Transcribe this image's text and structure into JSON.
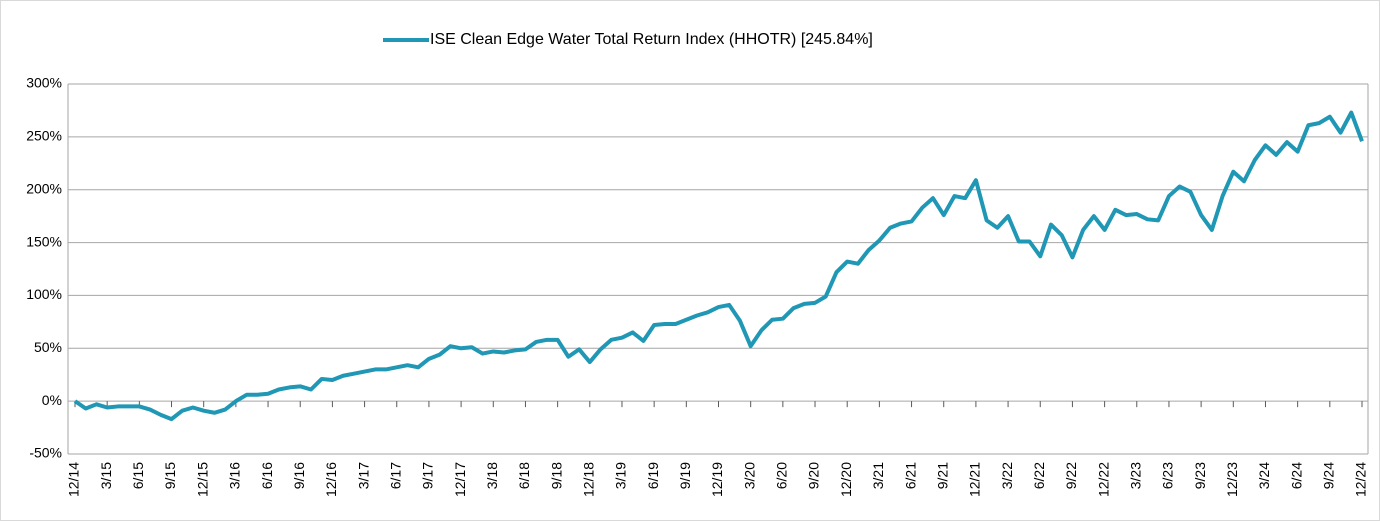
{
  "chart_data": {
    "type": "line",
    "categories": [
      "12/14",
      null,
      null,
      "3/15",
      null,
      null,
      "6/15",
      null,
      null,
      "9/15",
      null,
      null,
      "12/15",
      null,
      null,
      "3/16",
      null,
      null,
      "6/16",
      null,
      null,
      "9/16",
      null,
      null,
      "12/16",
      null,
      null,
      "3/17",
      null,
      null,
      "6/17",
      null,
      null,
      "9/17",
      null,
      null,
      "12/17",
      null,
      null,
      "3/18",
      null,
      null,
      "6/18",
      null,
      null,
      "9/18",
      null,
      null,
      "12/18",
      null,
      null,
      "3/19",
      null,
      null,
      "6/19",
      null,
      null,
      "9/19",
      null,
      null,
      "12/19",
      null,
      null,
      "3/20",
      null,
      null,
      "6/20",
      null,
      null,
      "9/20",
      null,
      null,
      "12/20",
      null,
      null,
      "3/21",
      null,
      null,
      "6/21",
      null,
      null,
      "9/21",
      null,
      null,
      "12/21",
      null,
      null,
      "3/22",
      null,
      null,
      "6/22",
      null,
      null,
      "9/22",
      null,
      null,
      "12/22",
      null,
      null,
      "3/23",
      null,
      null,
      "6/23",
      null,
      null,
      "9/23",
      null,
      null,
      "12/23",
      null,
      null,
      "3/24",
      null,
      null,
      "6/24",
      null,
      null,
      "9/24",
      null,
      null,
      "12/24"
    ],
    "series": [
      {
        "name": "ISE Clean Edge Water Total Return Index (HHOTR) [245.84%]",
        "color": "#1f97b5",
        "values": [
          0,
          -7,
          -3,
          -6,
          -5,
          -5,
          -5,
          -8,
          -13,
          -17,
          -9,
          -6,
          -9,
          -11,
          -8,
          0,
          6,
          6,
          7,
          11,
          13,
          14,
          11,
          21,
          20,
          24,
          26,
          28,
          30,
          30,
          32,
          34,
          32,
          40,
          44,
          52,
          50,
          51,
          45,
          47,
          46,
          48,
          49,
          56,
          58,
          58,
          42,
          49,
          37,
          49,
          58,
          60,
          65,
          57,
          72,
          73,
          73,
          77,
          81,
          84,
          89,
          91,
          76,
          52,
          67,
          77,
          78,
          88,
          92,
          93,
          99,
          122,
          132,
          130,
          143,
          152,
          164,
          168,
          170,
          183,
          192,
          176,
          194,
          192,
          209,
          171,
          164,
          175,
          151,
          151,
          137,
          167,
          157,
          136,
          162,
          175,
          162,
          181,
          176,
          177,
          172,
          171,
          194,
          203,
          198,
          176,
          162,
          194,
          217,
          208,
          228,
          242,
          233,
          245,
          236,
          261,
          263,
          269,
          254,
          273,
          245.84
        ]
      }
    ],
    "ylim": [
      -50,
      300
    ],
    "yticks": [
      {
        "value": -50,
        "label": "-50%"
      },
      {
        "value": 0,
        "label": "0%"
      },
      {
        "value": 50,
        "label": "50%"
      },
      {
        "value": 100,
        "label": "100%"
      },
      {
        "value": 150,
        "label": "150%"
      },
      {
        "value": 200,
        "label": "200%"
      },
      {
        "value": 250,
        "label": "250%"
      },
      {
        "value": 300,
        "label": "300%"
      }
    ],
    "grid": true,
    "legend": "top"
  }
}
